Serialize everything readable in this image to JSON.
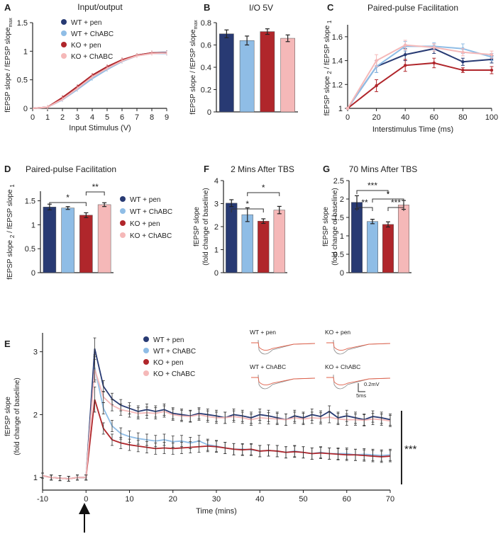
{
  "colors": {
    "wt_pen": "#283a73",
    "wt_chabc": "#8fbde6",
    "ko_pen": "#b0262b",
    "ko_chabc": "#f5b8b8",
    "axis": "#222222",
    "sig": "#333333"
  },
  "legend": [
    "WT + pen",
    "WT + ChABC",
    "KO + pen",
    "KO + ChABC"
  ],
  "chart_data": [
    {
      "panel": "A",
      "type": "line",
      "title": "Input/output",
      "xlabel": "Input Stimulus (V)",
      "ylabel": "fEPSP slope / fEPSP slope",
      "ylabel_sub": "max",
      "xlim": [
        0,
        9
      ],
      "ylim": [
        0,
        1.5
      ],
      "xticks": [
        "0",
        "1",
        "2",
        "3",
        "4",
        "5",
        "6",
        "7",
        "8",
        "9"
      ],
      "yticks": [
        "0",
        "0.5",
        "1",
        "1.5"
      ],
      "x": [
        0,
        1,
        2,
        3,
        4,
        5,
        6,
        7,
        8,
        9
      ],
      "series": [
        {
          "name": "WT + pen",
          "color": "#283a73",
          "values": [
            0,
            0.02,
            0.18,
            0.38,
            0.57,
            0.71,
            0.84,
            0.93,
            0.97,
            0.98
          ]
        },
        {
          "name": "WT + ChABC",
          "color": "#8fbde6",
          "values": [
            0,
            0.02,
            0.15,
            0.33,
            0.52,
            0.68,
            0.82,
            0.92,
            0.96,
            0.96
          ]
        },
        {
          "name": "KO + pen",
          "color": "#b0262b",
          "values": [
            0,
            0.02,
            0.19,
            0.38,
            0.58,
            0.73,
            0.85,
            0.93,
            0.97,
            0.97
          ]
        },
        {
          "name": "KO + ChABC",
          "color": "#f5b8b8",
          "values": [
            0,
            0.02,
            0.16,
            0.35,
            0.55,
            0.7,
            0.83,
            0.92,
            0.96,
            0.97
          ]
        }
      ]
    },
    {
      "panel": "B",
      "type": "bar",
      "title": "I/O 5V",
      "ylabel": "fEPSP slope / fEPSP slope",
      "ylabel_sub": "max",
      "ylim": [
        0,
        0.8
      ],
      "yticks": [
        "0",
        "0.2",
        "0.4",
        "0.6",
        "0.8"
      ],
      "categories": [
        "WT + pen",
        "WT + ChABC",
        "KO + pen",
        "KO + ChABC"
      ],
      "values": [
        0.7,
        0.64,
        0.72,
        0.66
      ],
      "errors": [
        0.035,
        0.04,
        0.025,
        0.03
      ]
    },
    {
      "panel": "C",
      "type": "line",
      "title": "Paired-pulse Facilitation",
      "xlabel": "Interstimulus Time (ms)",
      "ylabel": "fEPSP slope",
      "ylabel_sub1": "2",
      "ylabel_mid": " / fEPSP slope",
      "ylabel_sub2": "1",
      "xlim": [
        0,
        100
      ],
      "ylim": [
        1,
        1.7
      ],
      "xticks": [
        "0",
        "20",
        "40",
        "60",
        "80",
        "100"
      ],
      "yticks": [
        "1",
        "1.2",
        "1.4",
        "1.6"
      ],
      "x": [
        0,
        20,
        40,
        60,
        80,
        100
      ],
      "series": [
        {
          "name": "WT + pen",
          "color": "#283a73",
          "values": [
            1,
            1.35,
            1.45,
            1.5,
            1.39,
            1.41
          ],
          "errors": [
            0,
            0.05,
            0.05,
            0.04,
            0.03,
            0.03
          ]
        },
        {
          "name": "WT + ChABC",
          "color": "#8fbde6",
          "values": [
            1,
            1.35,
            1.52,
            1.52,
            1.5,
            1.43
          ],
          "errors": [
            0,
            0.05,
            0.04,
            0.03,
            0.04,
            0.03
          ]
        },
        {
          "name": "KO + pen",
          "color": "#b0262b",
          "values": [
            1,
            1.19,
            1.36,
            1.38,
            1.32,
            1.32
          ],
          "errors": [
            0,
            0.05,
            0.05,
            0.04,
            0.02,
            0.03
          ]
        },
        {
          "name": "KO + ChABC",
          "color": "#f5b8b8",
          "values": [
            1,
            1.4,
            1.53,
            1.51,
            1.47,
            1.45
          ],
          "errors": [
            0,
            0.05,
            0.04,
            0.03,
            0.03,
            0.03
          ]
        }
      ]
    },
    {
      "panel": "D",
      "type": "bar",
      "title": "Paired-pulse Facilitation",
      "ylabel": "fEPSP slope",
      "ylabel_sub1": "2",
      "ylabel_mid": " / fEPSP slope",
      "ylabel_sub2": "1",
      "ylim": [
        0,
        1.7
      ],
      "yticks": [
        "0",
        "0.5",
        "1",
        "1.5"
      ],
      "categories": [
        "WT + pen",
        "WT + ChABC",
        "KO + pen",
        "KO + ChABC"
      ],
      "values": [
        1.37,
        1.35,
        1.2,
        1.42
      ],
      "errors": [
        0.06,
        0.03,
        0.05,
        0.04
      ],
      "significance": [
        {
          "pair": [
            0,
            2
          ],
          "label": "*"
        },
        {
          "pair": [
            2,
            3
          ],
          "label": "**"
        }
      ]
    },
    {
      "panel": "F",
      "type": "bar",
      "title": "2 Mins After TBS",
      "ylabel": "fEPSP slope",
      "ylabel2": "(fold change of baseline)",
      "ylim": [
        0,
        4
      ],
      "yticks": [
        "0",
        "1",
        "2",
        "3",
        "4"
      ],
      "categories": [
        "WT + pen",
        "WT + ChABC",
        "KO + pen",
        "KO + ChABC"
      ],
      "values": [
        3.02,
        2.52,
        2.24,
        2.72
      ],
      "errors": [
        0.15,
        0.3,
        0.1,
        0.16
      ],
      "significance": [
        {
          "pair": [
            0,
            2
          ],
          "label": "*"
        },
        {
          "pair": [
            1,
            3
          ],
          "label": "*"
        }
      ]
    },
    {
      "panel": "G",
      "type": "bar",
      "title": "70 Mins After TBS",
      "ylabel": "fEPSP slope",
      "ylabel2": "(fold change of baseline)",
      "ylim": [
        0,
        2.5
      ],
      "yticks": [
        "0",
        "0.5",
        "1",
        "1.5",
        "2",
        "2.5"
      ],
      "categories": [
        "WT + pen",
        "WT + ChABC",
        "KO + pen",
        "KO + ChABC"
      ],
      "values": [
        1.91,
        1.39,
        1.31,
        1.84
      ],
      "errors": [
        0.18,
        0.06,
        0.07,
        0.12
      ],
      "significance": [
        {
          "pair": [
            0,
            1
          ],
          "label": "**"
        },
        {
          "pair": [
            0,
            2
          ],
          "label": "***"
        },
        {
          "pair": [
            2,
            3
          ],
          "label": "***"
        },
        {
          "pair": [
            1,
            3
          ],
          "label": "*"
        }
      ]
    },
    {
      "panel": "E",
      "type": "line",
      "xlabel": "Time (mins)",
      "ylabel": "fEPSP slope",
      "ylabel2": "(fold change of baseline)",
      "xlim": [
        -10,
        70
      ],
      "ylim": [
        0.8,
        3.3
      ],
      "xticks": [
        "-10",
        "0",
        "10",
        "20",
        "30",
        "40",
        "50",
        "60",
        "70"
      ],
      "yticks": [
        "1",
        "2",
        "3"
      ],
      "significance_label": "***",
      "inset_labels": [
        "WT + pen",
        "KO + pen",
        "WT + ChABC",
        "KO + ChABC"
      ],
      "scale_labels": [
        "0.2mV",
        "5ms"
      ],
      "baseline_x": [
        -10,
        -8,
        -6,
        -4,
        -2,
        0
      ],
      "post_x_start": 2,
      "post_x_step": 2,
      "series": [
        {
          "name": "WT + pen",
          "color": "#283a73",
          "values": [
            3.05,
            2.45,
            2.25,
            2.15,
            2.1,
            2.05,
            2.08,
            2.05,
            2.08,
            2.02,
            2.0,
            1.98,
            2.02,
            2.0,
            1.98,
            1.95,
            2.0,
            1.98,
            1.95,
            2.0,
            1.98,
            1.95,
            1.92,
            1.98,
            1.95,
            2.0,
            1.97,
            2.05,
            1.95,
            1.98,
            1.95,
            1.92,
            1.97,
            1.95,
            1.92
          ]
        },
        {
          "name": "WT + ChABC",
          "color": "#8fbde6",
          "values": [
            2.75,
            2.1,
            1.82,
            1.7,
            1.65,
            1.62,
            1.6,
            1.58,
            1.6,
            1.57,
            1.58,
            1.55,
            1.58,
            1.52,
            1.5,
            1.47,
            1.45,
            1.45,
            1.44,
            1.42,
            1.43,
            1.42,
            1.4,
            1.42,
            1.4,
            1.38,
            1.4,
            1.38,
            1.38,
            1.38,
            1.36,
            1.37,
            1.36,
            1.35,
            1.36
          ]
        },
        {
          "name": "KO + pen",
          "color": "#b0262b",
          "values": [
            2.24,
            1.78,
            1.6,
            1.55,
            1.52,
            1.5,
            1.48,
            1.46,
            1.47,
            1.46,
            1.47,
            1.48,
            1.49,
            1.5,
            1.49,
            1.47,
            1.45,
            1.44,
            1.45,
            1.42,
            1.43,
            1.42,
            1.4,
            1.41,
            1.4,
            1.38,
            1.39,
            1.38,
            1.37,
            1.36,
            1.36,
            1.35,
            1.34,
            1.33,
            1.34
          ]
        },
        {
          "name": "KO + ChABC",
          "color": "#f5b8b8",
          "values": [
            2.72,
            2.28,
            2.15,
            2.08,
            2.05,
            2.02,
            2.03,
            2.02,
            2.05,
            2.0,
            1.98,
            1.97,
            2.0,
            1.97,
            1.95,
            1.95,
            1.97,
            1.95,
            1.92,
            1.95,
            1.94,
            1.93,
            1.92,
            1.95,
            1.93,
            1.95,
            1.94,
            1.96,
            1.93,
            1.92,
            1.92,
            1.91,
            1.93,
            1.92,
            1.9
          ]
        }
      ],
      "baseline_values": [
        1.03,
        1.0,
        0.99,
        0.98,
        1.0,
        1.0
      ]
    }
  ]
}
